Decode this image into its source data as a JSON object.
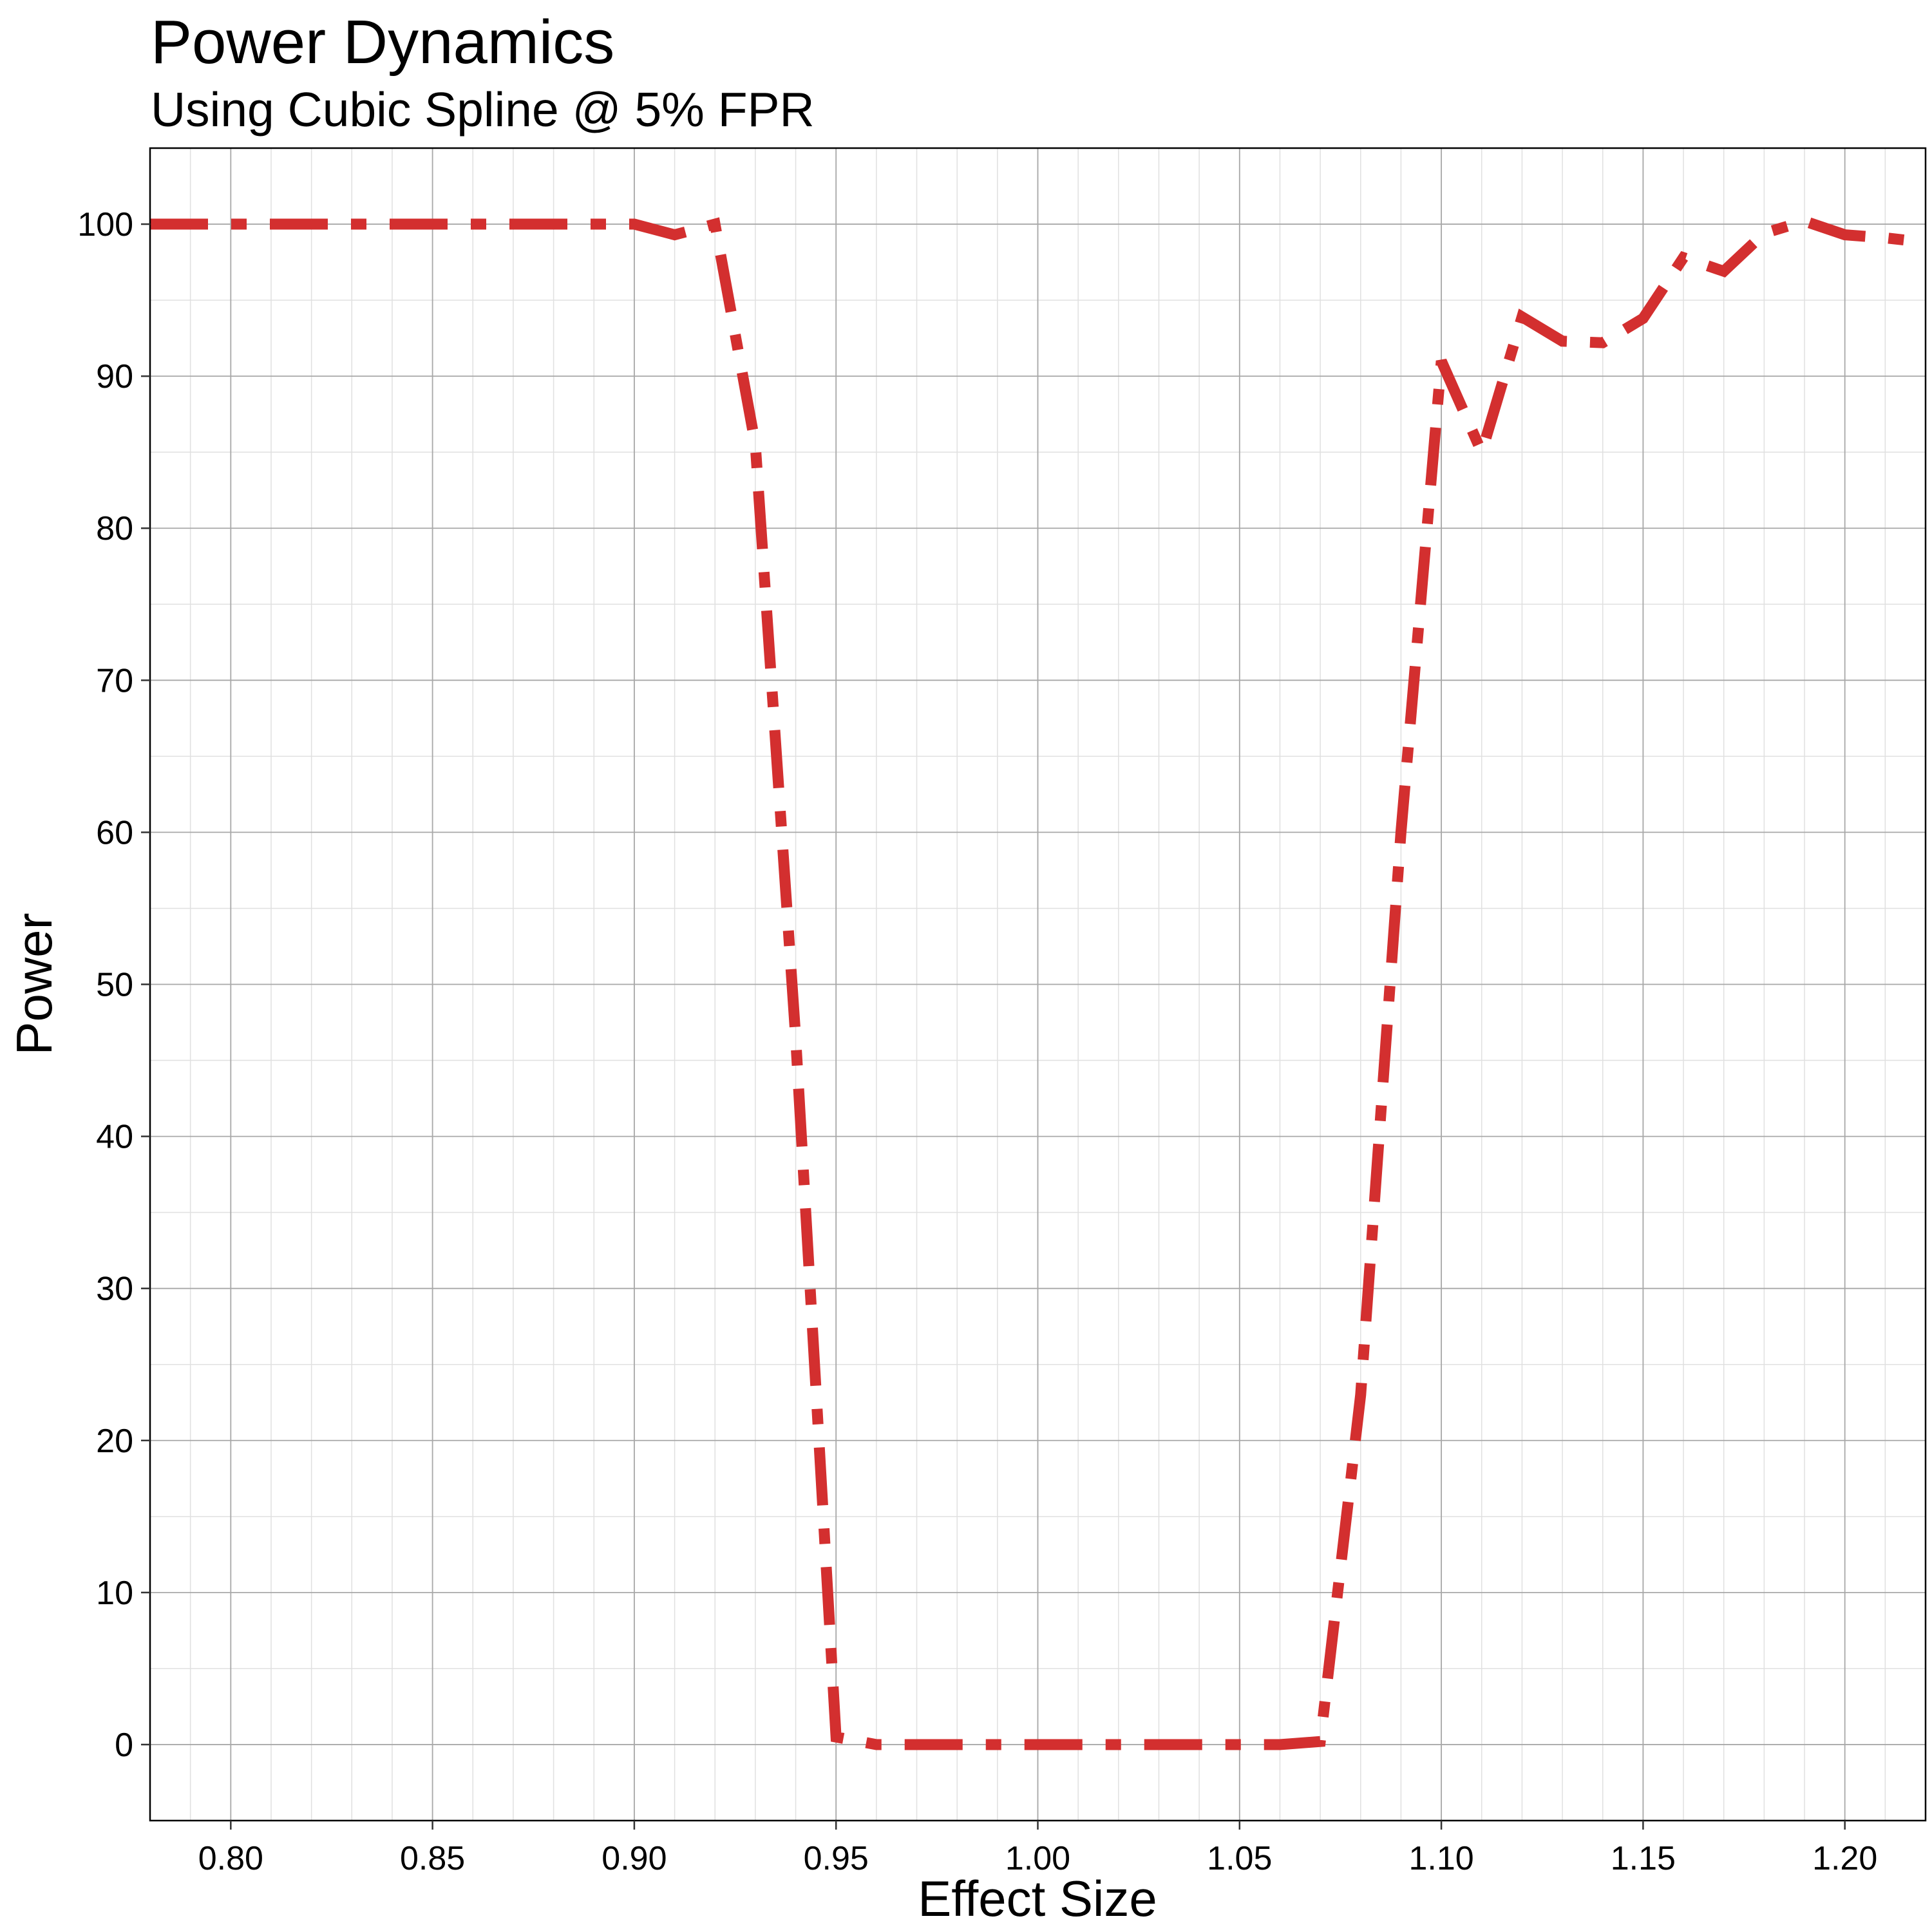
{
  "chart_data": {
    "type": "line",
    "title": "Power Dynamics",
    "subtitle": "Using Cubic Spline @ 5% FPR",
    "xlabel": "Effect Size",
    "ylabel": "Power",
    "xlim": [
      0.78,
      1.22
    ],
    "ylim": [
      -5,
      105
    ],
    "x_ticks": [
      0.8,
      0.85,
      0.9,
      0.95,
      1.0,
      1.05,
      1.1,
      1.15,
      1.2
    ],
    "x_tick_labels": [
      "0.80",
      "0.85",
      "0.90",
      "0.95",
      "1.00",
      "1.05",
      "1.10",
      "1.15",
      "1.20"
    ],
    "y_ticks": [
      0,
      10,
      20,
      30,
      40,
      50,
      60,
      70,
      80,
      90,
      100
    ],
    "y_tick_labels": [
      "0",
      "10",
      "20",
      "30",
      "40",
      "50",
      "60",
      "70",
      "80",
      "90",
      "100"
    ],
    "grid": true,
    "legend": "none",
    "line_style": "dash-dot",
    "series": [
      {
        "color": "#d32f2f",
        "x": [
          0.78,
          0.79,
          0.8,
          0.81,
          0.82,
          0.83,
          0.84,
          0.85,
          0.86,
          0.87,
          0.88,
          0.89,
          0.9,
          0.91,
          0.92,
          0.93,
          0.94,
          0.95,
          0.96,
          0.97,
          0.98,
          0.99,
          1.0,
          1.01,
          1.02,
          1.03,
          1.04,
          1.05,
          1.06,
          1.07,
          1.08,
          1.09,
          1.1,
          1.11,
          1.12,
          1.13,
          1.14,
          1.15,
          1.16,
          1.17,
          1.18,
          1.19,
          1.2,
          1.21,
          1.22
        ],
        "values": [
          100,
          100,
          100,
          100,
          100,
          100,
          100,
          100,
          100,
          100,
          100,
          100,
          100,
          99.3,
          100,
          85.5,
          46.5,
          0.5,
          0,
          0,
          0,
          0,
          0,
          0,
          0,
          0,
          0,
          0,
          0,
          0.2,
          23,
          60,
          91,
          85,
          93.9,
          92.3,
          92.2,
          93.8,
          97.8,
          96.9,
          99.4,
          100.2,
          99.3,
          99.1,
          98.8
        ]
      }
    ]
  }
}
